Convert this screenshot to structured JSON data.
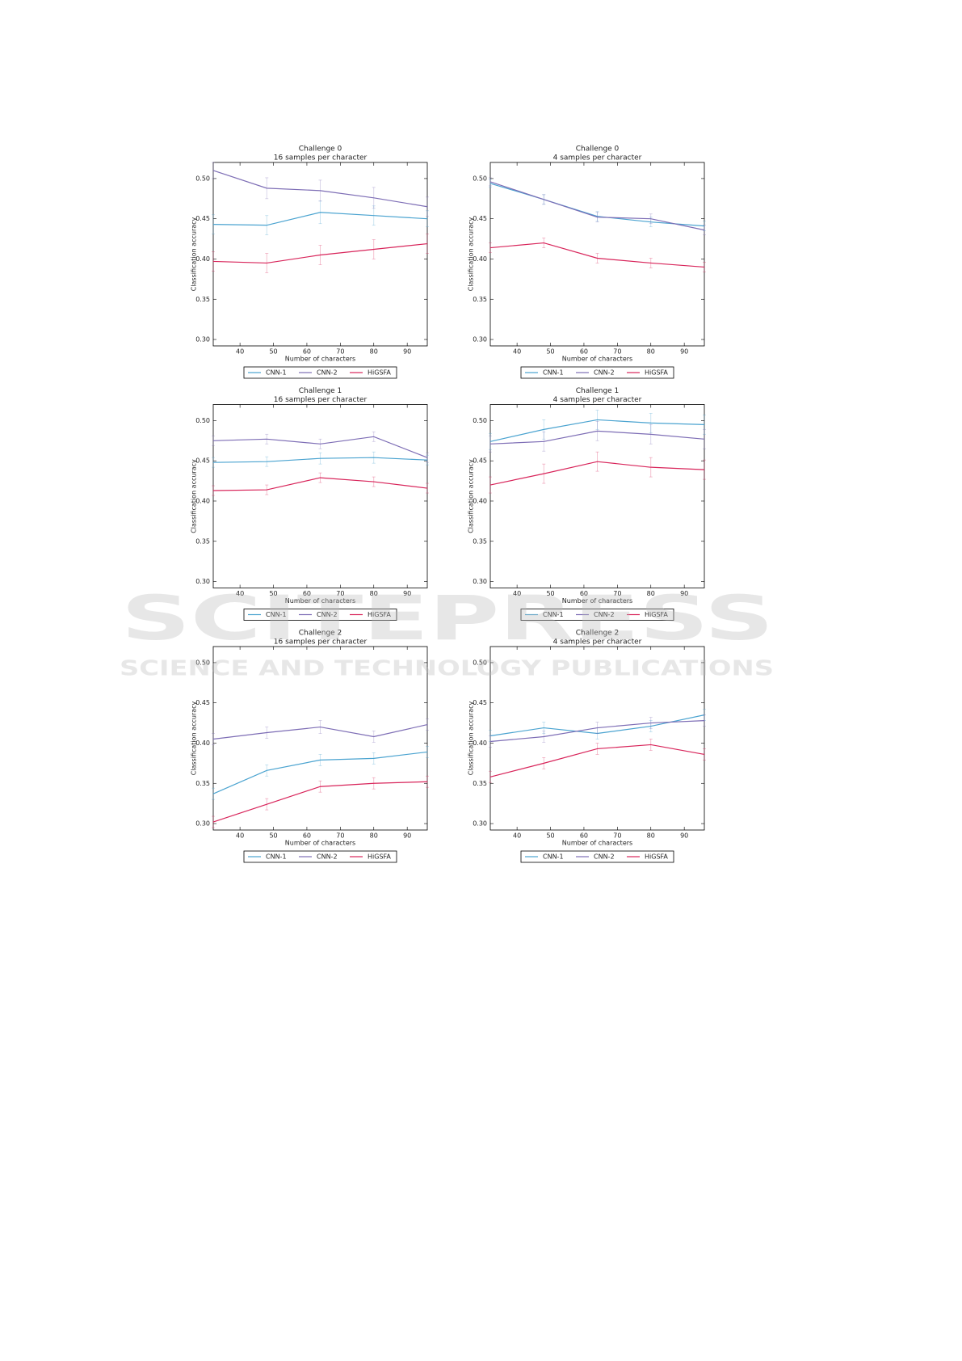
{
  "chart_data": [
    {
      "type": "line",
      "title": "Challenge 0",
      "subtitle": "16 samples per character",
      "x_label": "Number of characters",
      "y_label": "Classification accuracy",
      "x": [
        32,
        48,
        64,
        80,
        96
      ],
      "xlim": [
        32,
        96
      ],
      "ylim": [
        0.292,
        0.52
      ],
      "xticks": [
        40,
        50,
        60,
        70,
        80,
        90
      ],
      "yticks": [
        {
          "value": 0.3,
          "label": "0.30"
        },
        0.35,
        {
          "value": 0.4,
          "label": "0.40"
        },
        0.45,
        {
          "value": 0.5,
          "label": "0.50"
        }
      ],
      "legend": "bottom",
      "series": [
        {
          "name": "CNN-1",
          "color": "#4aa3d0",
          "values": [
            0.443,
            0.442,
            0.458,
            0.454,
            0.45
          ],
          "errors": [
            0.012,
            0.012,
            0.014,
            0.012,
            0.01
          ]
        },
        {
          "name": "CNN-2",
          "color": "#7d6db5",
          "values": [
            0.51,
            0.488,
            0.485,
            0.476,
            0.465
          ],
          "errors": [
            0.01,
            0.013,
            0.013,
            0.013,
            0.012
          ]
        },
        {
          "name": "HiGSFA",
          "color": "#d8245a",
          "values": [
            0.397,
            0.395,
            0.405,
            0.412,
            0.419
          ],
          "errors": [
            0.012,
            0.012,
            0.012,
            0.012,
            0.012
          ]
        }
      ]
    },
    {
      "type": "line",
      "title": "Challenge 0",
      "subtitle": "4 samples per character",
      "x_label": "Number of characters",
      "y_label": "Classification accuracy",
      "x": [
        32,
        48,
        64,
        80,
        96
      ],
      "xlim": [
        32,
        96
      ],
      "ylim": [
        0.292,
        0.52
      ],
      "xticks": [
        40,
        50,
        60,
        70,
        80,
        90
      ],
      "yticks": [
        {
          "value": 0.3,
          "label": "0.30"
        },
        0.35,
        {
          "value": 0.4,
          "label": "0.40"
        },
        0.45,
        {
          "value": 0.5,
          "label": "0.50"
        }
      ],
      "legend": "bottom",
      "series": [
        {
          "name": "CNN-1",
          "color": "#4aa3d0",
          "values": [
            0.494,
            0.474,
            0.453,
            0.446,
            0.441
          ],
          "errors": [
            0.005,
            0.006,
            0.006,
            0.006,
            0.006
          ]
        },
        {
          "name": "CNN-2",
          "color": "#7d6db5",
          "values": [
            0.496,
            0.474,
            0.452,
            0.45,
            0.436
          ],
          "errors": [
            0.005,
            0.006,
            0.006,
            0.006,
            0.006
          ]
        },
        {
          "name": "HiGSFA",
          "color": "#d8245a",
          "values": [
            0.414,
            0.42,
            0.401,
            0.395,
            0.39
          ],
          "errors": [
            0.006,
            0.006,
            0.006,
            0.006,
            0.006
          ]
        }
      ]
    },
    {
      "type": "line",
      "title": "Challenge 1",
      "subtitle": "16 samples per character",
      "x_label": "Number of characters",
      "y_label": "Classification accuracy",
      "x": [
        32,
        48,
        64,
        80,
        96
      ],
      "xlim": [
        32,
        96
      ],
      "ylim": [
        0.292,
        0.52
      ],
      "xticks": [
        40,
        50,
        60,
        70,
        80,
        90
      ],
      "yticks": [
        {
          "value": 0.3,
          "label": "0.30"
        },
        0.35,
        {
          "value": 0.4,
          "label": "0.40"
        },
        0.45,
        {
          "value": 0.5,
          "label": "0.50"
        }
      ],
      "legend": "bottom",
      "series": [
        {
          "name": "CNN-1",
          "color": "#4aa3d0",
          "values": [
            0.448,
            0.449,
            0.453,
            0.454,
            0.451
          ],
          "errors": [
            0.006,
            0.006,
            0.007,
            0.007,
            0.006
          ]
        },
        {
          "name": "CNN-2",
          "color": "#7d6db5",
          "values": [
            0.475,
            0.477,
            0.471,
            0.48,
            0.454
          ],
          "errors": [
            0.006,
            0.006,
            0.006,
            0.006,
            0.006
          ]
        },
        {
          "name": "HiGSFA",
          "color": "#d8245a",
          "values": [
            0.413,
            0.414,
            0.429,
            0.424,
            0.416
          ],
          "errors": [
            0.006,
            0.006,
            0.006,
            0.006,
            0.006
          ]
        }
      ]
    },
    {
      "type": "line",
      "title": "Challenge 1",
      "subtitle": "4 samples per character",
      "x_label": "Number of characters",
      "y_label": "Classification accuracy",
      "x": [
        32,
        48,
        64,
        80,
        96
      ],
      "xlim": [
        32,
        96
      ],
      "ylim": [
        0.292,
        0.52
      ],
      "xticks": [
        40,
        50,
        60,
        70,
        80,
        90
      ],
      "yticks": [
        {
          "value": 0.3,
          "label": "0.30"
        },
        0.35,
        {
          "value": 0.4,
          "label": "0.40"
        },
        0.45,
        {
          "value": 0.5,
          "label": "0.50"
        }
      ],
      "legend": "bottom",
      "series": [
        {
          "name": "CNN-1",
          "color": "#4aa3d0",
          "values": [
            0.474,
            0.489,
            0.501,
            0.497,
            0.495
          ],
          "errors": [
            0.01,
            0.012,
            0.012,
            0.012,
            0.012
          ]
        },
        {
          "name": "CNN-2",
          "color": "#7d6db5",
          "values": [
            0.471,
            0.474,
            0.487,
            0.483,
            0.477
          ],
          "errors": [
            0.01,
            0.012,
            0.012,
            0.012,
            0.012
          ]
        },
        {
          "name": "HiGSFA",
          "color": "#d8245a",
          "values": [
            0.42,
            0.434,
            0.449,
            0.442,
            0.439
          ],
          "errors": [
            0.01,
            0.012,
            0.012,
            0.012,
            0.012
          ]
        }
      ]
    },
    {
      "type": "line",
      "title": "Challenge 2",
      "subtitle": "16 samples per character",
      "x_label": "Number of characters",
      "y_label": "Classification accuracy",
      "x": [
        32,
        48,
        64,
        80,
        96
      ],
      "xlim": [
        32,
        96
      ],
      "ylim": [
        0.292,
        0.52
      ],
      "xticks": [
        40,
        50,
        60,
        70,
        80,
        90
      ],
      "yticks": [
        {
          "value": 0.3,
          "label": "0.30"
        },
        0.35,
        {
          "value": 0.4,
          "label": "0.40"
        },
        0.45,
        {
          "value": 0.5,
          "label": "0.50"
        }
      ],
      "legend": "bottom",
      "series": [
        {
          "name": "CNN-1",
          "color": "#4aa3d0",
          "values": [
            0.337,
            0.366,
            0.379,
            0.381,
            0.389
          ],
          "errors": [
            0.007,
            0.007,
            0.007,
            0.007,
            0.007
          ]
        },
        {
          "name": "CNN-2",
          "color": "#7d6db5",
          "values": [
            0.405,
            0.413,
            0.42,
            0.408,
            0.423
          ],
          "errors": [
            0.007,
            0.007,
            0.008,
            0.007,
            0.007
          ]
        },
        {
          "name": "HiGSFA",
          "color": "#d8245a",
          "values": [
            0.302,
            0.324,
            0.346,
            0.35,
            0.352
          ],
          "errors": [
            0.007,
            0.007,
            0.007,
            0.007,
            0.007
          ]
        }
      ]
    },
    {
      "type": "line",
      "title": "Challenge 2",
      "subtitle": "4 samples per character",
      "x_label": "Number of characters",
      "y_label": "Classification accuracy",
      "x": [
        32,
        48,
        64,
        80,
        96
      ],
      "xlim": [
        32,
        96
      ],
      "ylim": [
        0.292,
        0.52
      ],
      "xticks": [
        40,
        50,
        60,
        70,
        80,
        90
      ],
      "yticks": [
        {
          "value": 0.3,
          "label": "0.30"
        },
        0.35,
        {
          "value": 0.4,
          "label": "0.40"
        },
        0.45,
        {
          "value": 0.5,
          "label": "0.50"
        }
      ],
      "legend": "bottom",
      "series": [
        {
          "name": "CNN-1",
          "color": "#4aa3d0",
          "values": [
            0.409,
            0.419,
            0.412,
            0.421,
            0.435
          ],
          "errors": [
            0.007,
            0.007,
            0.007,
            0.007,
            0.007
          ]
        },
        {
          "name": "CNN-2",
          "color": "#7d6db5",
          "values": [
            0.402,
            0.408,
            0.419,
            0.425,
            0.428
          ],
          "errors": [
            0.007,
            0.007,
            0.007,
            0.007,
            0.007
          ]
        },
        {
          "name": "HiGSFA",
          "color": "#d8245a",
          "values": [
            0.358,
            0.375,
            0.393,
            0.398,
            0.386
          ],
          "errors": [
            0.007,
            0.007,
            0.007,
            0.007,
            0.007
          ]
        }
      ]
    }
  ],
  "watermark": {
    "name": "SCITEPRESS",
    "tagline": "SCIENCE AND TECHNOLOGY PUBLICATIONS"
  }
}
